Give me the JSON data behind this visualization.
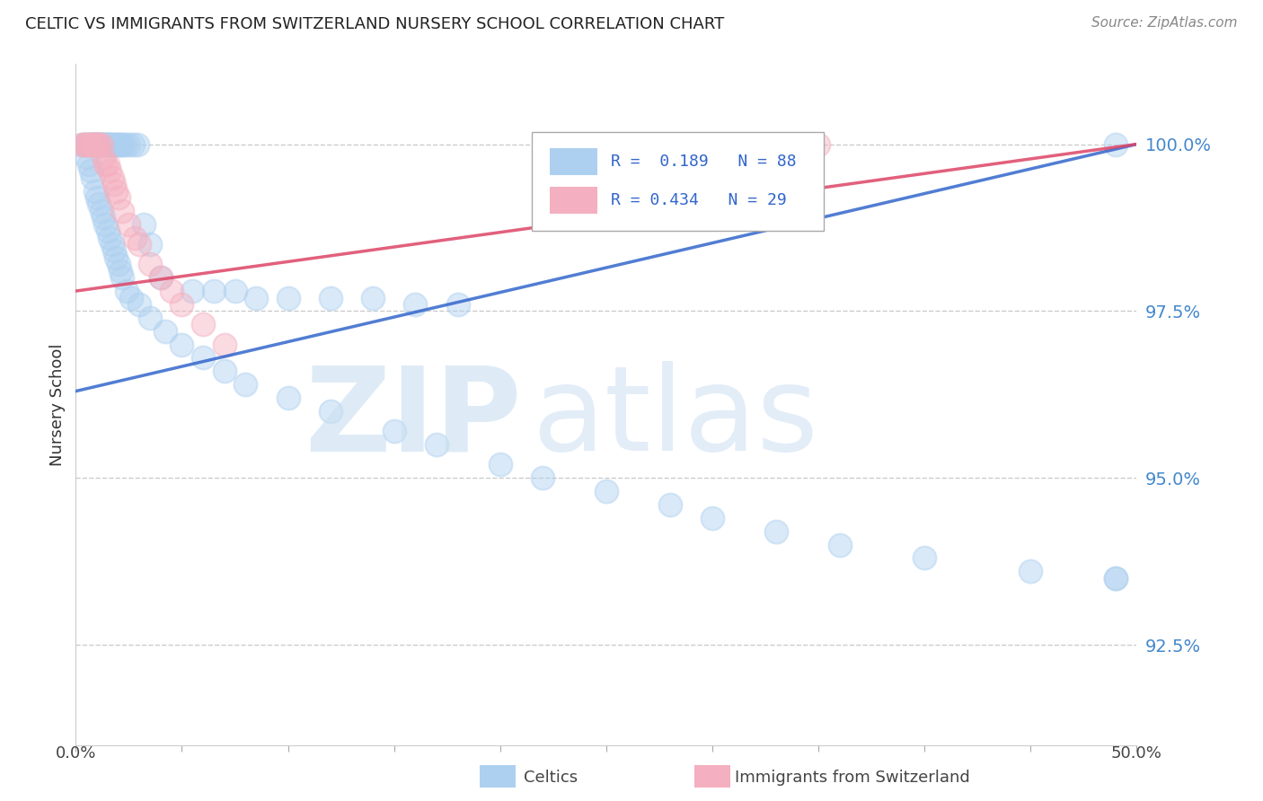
{
  "title": "CELTIC VS IMMIGRANTS FROM SWITZERLAND NURSERY SCHOOL CORRELATION CHART",
  "source": "Source: ZipAtlas.com",
  "ylabel": "Nursery School",
  "ytick_labels": [
    "100.0%",
    "97.5%",
    "95.0%",
    "92.5%"
  ],
  "ytick_values": [
    1.0,
    0.975,
    0.95,
    0.925
  ],
  "xlim": [
    0.0,
    0.5
  ],
  "ylim": [
    0.91,
    1.012
  ],
  "blue_color": "#add0f0",
  "pink_color": "#f4b0c0",
  "blue_line_color": "#3366cc",
  "pink_line_color": "#dd4466",
  "legend_text_blue": "R =  0.189   N = 88",
  "legend_text_pink": "R = 0.434   N = 29",
  "legend_color": "#3366cc",
  "watermark_zip": "ZIP",
  "watermark_atlas": "atlas",
  "background_color": "#ffffff",
  "grid_color": "#cccccc",
  "ytick_color": "#4488cc",
  "blue_scatter_x": [
    0.003,
    0.004,
    0.005,
    0.006,
    0.007,
    0.007,
    0.008,
    0.008,
    0.009,
    0.009,
    0.01,
    0.01,
    0.011,
    0.011,
    0.012,
    0.012,
    0.013,
    0.013,
    0.014,
    0.015,
    0.015,
    0.016,
    0.016,
    0.017,
    0.018,
    0.019,
    0.02,
    0.021,
    0.022,
    0.023,
    0.025,
    0.027,
    0.029,
    0.032,
    0.035,
    0.04,
    0.055,
    0.065,
    0.075,
    0.085,
    0.1,
    0.12,
    0.14,
    0.16,
    0.18,
    0.49,
    0.005,
    0.006,
    0.007,
    0.008,
    0.009,
    0.01,
    0.011,
    0.012,
    0.013,
    0.014,
    0.015,
    0.016,
    0.017,
    0.018,
    0.019,
    0.02,
    0.021,
    0.022,
    0.024,
    0.026,
    0.03,
    0.035,
    0.042,
    0.05,
    0.06,
    0.07,
    0.08,
    0.1,
    0.12,
    0.15,
    0.17,
    0.2,
    0.22,
    0.25,
    0.28,
    0.3,
    0.33,
    0.36,
    0.4,
    0.45,
    0.49,
    0.49
  ],
  "blue_scatter_y": [
    1.0,
    1.0,
    1.0,
    1.0,
    1.0,
    1.0,
    1.0,
    1.0,
    1.0,
    1.0,
    1.0,
    1.0,
    1.0,
    1.0,
    1.0,
    1.0,
    1.0,
    1.0,
    1.0,
    1.0,
    1.0,
    1.0,
    1.0,
    1.0,
    1.0,
    1.0,
    1.0,
    1.0,
    1.0,
    1.0,
    1.0,
    1.0,
    1.0,
    0.988,
    0.985,
    0.98,
    0.978,
    0.978,
    0.978,
    0.977,
    0.977,
    0.977,
    0.977,
    0.976,
    0.976,
    1.0,
    0.998,
    0.997,
    0.996,
    0.995,
    0.993,
    0.992,
    0.991,
    0.99,
    0.989,
    0.988,
    0.987,
    0.986,
    0.985,
    0.984,
    0.983,
    0.982,
    0.981,
    0.98,
    0.978,
    0.977,
    0.976,
    0.974,
    0.972,
    0.97,
    0.968,
    0.966,
    0.964,
    0.962,
    0.96,
    0.957,
    0.955,
    0.952,
    0.95,
    0.948,
    0.946,
    0.944,
    0.942,
    0.94,
    0.938,
    0.936,
    0.935,
    0.935
  ],
  "pink_scatter_x": [
    0.003,
    0.004,
    0.005,
    0.006,
    0.007,
    0.008,
    0.009,
    0.01,
    0.011,
    0.012,
    0.013,
    0.014,
    0.015,
    0.016,
    0.017,
    0.018,
    0.019,
    0.02,
    0.022,
    0.025,
    0.028,
    0.03,
    0.035,
    0.04,
    0.045,
    0.05,
    0.06,
    0.07,
    0.35
  ],
  "pink_scatter_y": [
    1.0,
    1.0,
    1.0,
    1.0,
    1.0,
    1.0,
    1.0,
    1.0,
    1.0,
    1.0,
    0.998,
    0.997,
    0.997,
    0.996,
    0.995,
    0.994,
    0.993,
    0.992,
    0.99,
    0.988,
    0.986,
    0.985,
    0.982,
    0.98,
    0.978,
    0.976,
    0.973,
    0.97,
    1.0
  ],
  "blue_trend": [
    0.0,
    0.963,
    0.5,
    1.0
  ],
  "pink_trend": [
    0.0,
    0.978,
    0.5,
    1.0
  ]
}
